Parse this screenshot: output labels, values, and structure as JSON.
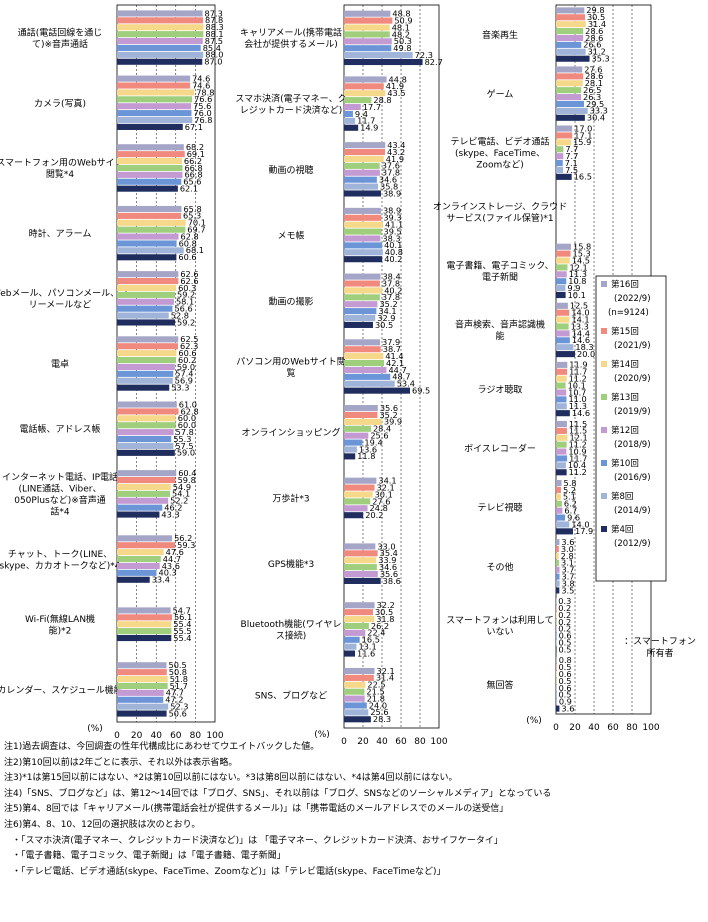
{
  "chart_data": {
    "type": "bar",
    "orientation": "horizontal",
    "xlim": [
      0,
      100
    ],
    "grid": true,
    "legend_position": "right of third column",
    "axis_unit": "(%)",
    "ticks": [
      "0",
      "20",
      "40",
      "60",
      "80",
      "100"
    ],
    "series": [
      {
        "name": "第16回",
        "period": "(2022/9)",
        "sub": "(n=9124)",
        "color": "#A5A5C8"
      },
      {
        "name": "第15回",
        "period": "(2021/9)",
        "color": "#F08A7E"
      },
      {
        "name": "第14回",
        "period": "(2020/9)",
        "color": "#F6D88A"
      },
      {
        "name": "第13回",
        "period": "(2019/9)",
        "color": "#9FCF7C"
      },
      {
        "name": "第12回",
        "period": "(2018/9)",
        "color": "#C39BD2"
      },
      {
        "name": "第10回",
        "period": "(2016/9)",
        "color": "#6C95D8"
      },
      {
        "name": "第8回",
        "period": "(2014/9)",
        "color": "#A0B3D8"
      },
      {
        "name": "第4回",
        "period": "(2012/9)",
        "color": "#1F2E5E"
      }
    ],
    "columns": [
      {
        "plot_top": 5,
        "plot_bottom": 722,
        "categories": [
          {
            "label": [
              "通話(電話回線を通じ",
              "て)※音声通話"
            ],
            "values": [
              87.3,
              87.8,
              88.3,
              88.1,
              87.5,
              85.4,
              88.0,
              87.0
            ]
          },
          {
            "label": [
              "カメラ(写真)"
            ],
            "values": [
              74.6,
              74.6,
              78.8,
              76.6,
              75.6,
              76.0,
              76.8,
              67.1
            ]
          },
          {
            "label": [
              "スマートフォン用のWebサイト",
              "閲覧*4"
            ],
            "values": [
              68.2,
              69.1,
              66.2,
              66.8,
              66.8,
              65.6,
              62.1
            ]
          },
          {
            "label": [
              "時計、アラーム"
            ],
            "values": [
              65.8,
              65.3,
              70.1,
              69.7,
              62.8,
              60.8,
              68.1,
              60.6
            ]
          },
          {
            "label": [
              "Webメール、パソコンメール、フ",
              "リーメールなど"
            ],
            "values": [
              62.6,
              62.6,
              60.3,
              59.2,
              58.1,
              56.6,
              52.8,
              59.2
            ]
          },
          {
            "label": [
              "電卓"
            ],
            "values": [
              62.5,
              62.3,
              60.6,
              60.2,
              59.0,
              57.4,
              56.9,
              53.3
            ]
          },
          {
            "label": [
              "電話帳、アドレス帳"
            ],
            "values": [
              61.0,
              62.8,
              60.0,
              60.0,
              57.8,
              55.3,
              57.5,
              59.0
            ]
          },
          {
            "label": [
              "インターネット電話、IP電話",
              "(LINE通話、Viber、",
              "050Plusなど)※音声通",
              "話*4"
            ],
            "values": [
              60.4,
              59.8,
              54.9,
              54.1,
              52.2,
              46.2,
              43.3
            ]
          },
          {
            "label": [
              "チャット、トーク(LINE、",
              "skype、カカオトークなど)*4"
            ],
            "values": [
              56.2,
              59.3,
              47.6,
              44.7,
              43.6,
              40.3,
              33.4
            ]
          },
          {
            "label": [
              "Wi-Fi(無線LAN機",
              "能)*2"
            ],
            "values": [
              54.7,
              56.1,
              55.4,
              55.5,
              55.4
            ]
          },
          {
            "label": [
              "カレンダー、スケジュール機能"
            ],
            "values": [
              50.5,
              50.8,
              51.8,
              51.7,
              47.7,
              47.2,
              52.3,
              50.6
            ]
          }
        ]
      },
      {
        "plot_top": 5,
        "plot_bottom": 728,
        "categories": [
          {
            "label": [
              "キャリアメール(携帯電話",
              "会社が提供するメール)"
            ],
            "values": [
              48.8,
              50.9,
              48.1,
              48.2,
              50.3,
              49.8,
              72.3,
              82.7
            ]
          },
          {
            "label": [
              "スマホ決済(電子マネー、ク",
              "レジットカード決済など)"
            ],
            "values": [
              44.8,
              41.9,
              43.5,
              28.8,
              17.7,
              9.4,
              11.7,
              14.9
            ]
          },
          {
            "label": [
              "動画の視聴"
            ],
            "values": [
              43.4,
              43.2,
              41.9,
              37.6,
              37.8,
              34.6,
              35.8,
              38.9
            ]
          },
          {
            "label": [
              "メモ帳"
            ],
            "values": [
              38.9,
              39.3,
              41.1,
              39.5,
              38.3,
              40.1,
              40.8,
              40.2
            ]
          },
          {
            "label": [
              "動画の撮影"
            ],
            "values": [
              38.4,
              37.8,
              40.2,
              37.8,
              35.2,
              34.1,
              32.9,
              30.5
            ]
          },
          {
            "label": [
              "パソコン用のWebサイト閲",
              "覧"
            ],
            "values": [
              37.9,
              38.7,
              41.4,
              42.1,
              44.7,
              48.7,
              53.4,
              69.5
            ]
          },
          {
            "label": [
              "オンラインショッピング"
            ],
            "values": [
              35.6,
              35.2,
              39.9,
              28.4,
              25.6,
              19.4,
              13.6,
              11.8
            ]
          },
          {
            "label": [
              "万歩計*3"
            ],
            "values": [
              34.1,
              32.1,
              30.1,
              27.6,
              24.8,
              20.2
            ]
          },
          {
            "label": [
              "GPS機能*3"
            ],
            "values": [
              33.0,
              35.4,
              33.9,
              34.6,
              35.6,
              38.6
            ]
          },
          {
            "label": [
              "Bluetooth機能(ワイヤレ",
              "ス接続)"
            ],
            "values": [
              32.2,
              30.5,
              31.8,
              26.2,
              22.4,
              16.5,
              13.1,
              11.6
            ]
          },
          {
            "label": [
              "SNS、ブログなど"
            ],
            "values": [
              32.1,
              31.4,
              22.5,
              21.5,
              21.8,
              24.0,
              25.6,
              28.3
            ]
          }
        ]
      },
      {
        "plot_top": 5,
        "plot_bottom": 714,
        "categories": [
          {
            "label": [
              "音楽再生"
            ],
            "values": [
              29.8,
              30.5,
              31.4,
              28.6,
              28.6,
              26.6,
              31.2,
              35.3
            ]
          },
          {
            "label": [
              "ゲーム"
            ],
            "values": [
              27.6,
              28.6,
              28.1,
              26.5,
              26.3,
              29.5,
              33.3,
              30.4
            ]
          },
          {
            "label": [
              "テレビ電話、ビデオ通話",
              "(skype、FaceTime、",
              "Zoomなど)"
            ],
            "values": [
              17.0,
              17.1,
              15.9,
              7.7,
              7.7,
              7.1,
              7.5,
              16.5
            ]
          },
          {
            "label": [
              "オンラインストレージ、クラウド",
              "サービス(ファイル保管)*1"
            ],
            "values": []
          },
          {
            "label": [
              "電子書籍、電子コミック、",
              "電子新聞"
            ],
            "values": [
              15.8,
              15.3,
              14.5,
              12.1,
              11.3,
              10.8,
              9.9,
              10.1
            ]
          },
          {
            "label": [
              "音声検索、音声認識機",
              "能"
            ],
            "values": [
              12.5,
              14.0,
              14.1,
              13.3,
              14.4,
              14.6,
              18.3,
              20.0
            ]
          },
          {
            "label": [
              "ラジオ聴取"
            ],
            "values": [
              11.9,
              11.7,
              11.2,
              10.1,
              10.7,
              11.0,
              11.3,
              14.6
            ]
          },
          {
            "label": [
              "ボイスレコーダー"
            ],
            "values": [
              11.5,
              11.5,
              12.1,
              11.2,
              10.9,
              11.7,
              10.4,
              11.2
            ]
          },
          {
            "label": [
              "テレビ視聴"
            ],
            "values": [
              5.8,
              5.2,
              5.1,
              6.2,
              6.7,
              9.6,
              14.0,
              17.9
            ]
          },
          {
            "label": [
              "その他"
            ],
            "values": [
              3.6,
              3.0,
              2.8,
              3.1,
              3.7,
              3.7,
              3.8,
              3.5
            ]
          },
          {
            "label": [
              "スマートフォンは利用して",
              "いない"
            ],
            "values": [
              0.3,
              0.2,
              0.2,
              0.2,
              0.2,
              0.6,
              0.5,
              0.5
            ]
          },
          {
            "label": [
              "無回答"
            ],
            "values": [
              0.8,
              0.5,
              0.6,
              0.5,
              0.6,
              0.5,
              0.9,
              3.6
            ]
          }
        ],
        "side_note": [
          "：スマートフォン",
          "所有者"
        ]
      }
    ]
  },
  "notes": [
    "注1)過去調査は、今回調査の性年代構成比にあわせてウエイトバックした値。",
    "注2)第10回以前は2年ごとに表示、それ以外は表示省略。",
    "注3)*1は第15回以前にはない、*2は第10回以前にはない。*3は第8回以前にはない、*4は第4回以前にはない。",
    "注4)「SNS、ブログなど」は、第12～14回では「ブログ、SNS」、それ以前は「ブログ、SNSなどのソーシャルメディア」となっている",
    "注5)第4、8回では「キャリアメール(携帯電話会社が提供するメール)」は「携帯電話のメールアドレスでのメールの送受信」",
    "注6)第4、8、10、12回の選択肢は次のとおり。",
    "・「スマホ決済(電子マネー、クレジットカード決済など)」は 「電子マネー、クレジットカード決済、おサイフケータイ」",
    "・「電子書籍、電子コミック、電子新聞」は「電子書籍、電子新聞」",
    "・「テレビ電話、ビデオ通話(skype、FaceTime、Zoomなど)」は「テレビ電話(skype、FaceTimeなど)」"
  ]
}
